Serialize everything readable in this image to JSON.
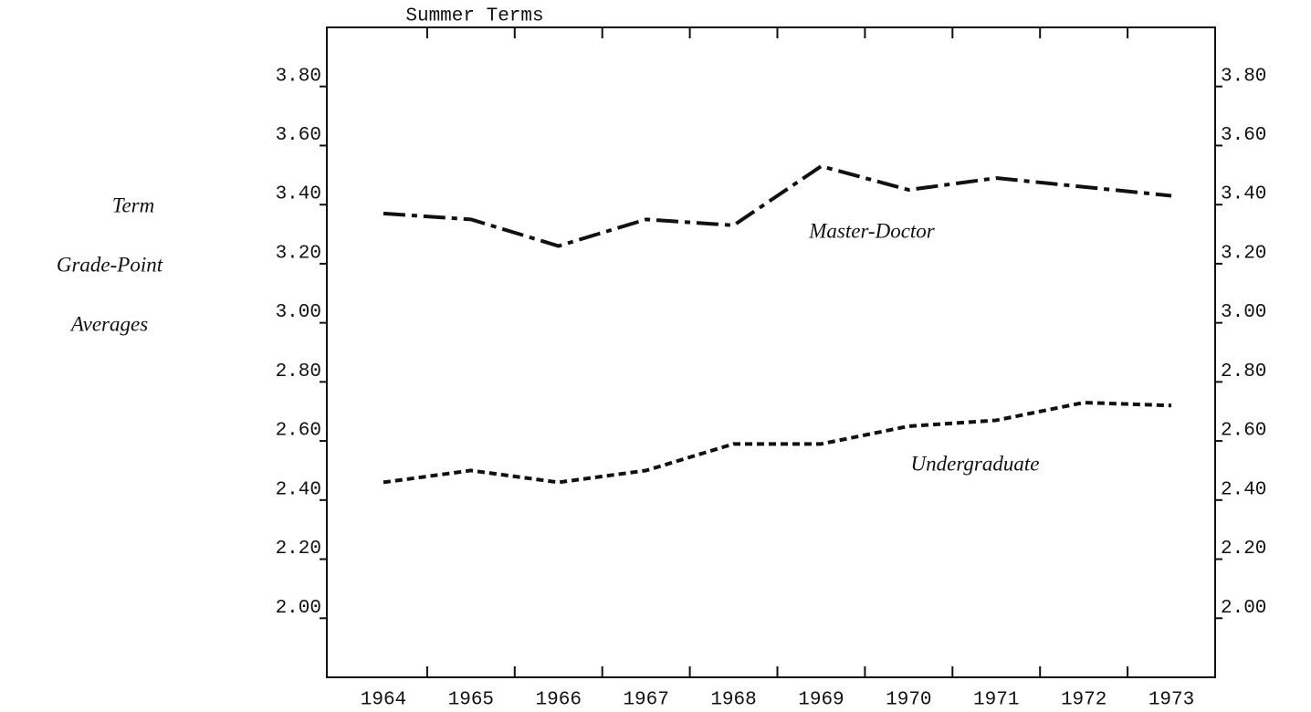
{
  "chart_data": {
    "type": "line",
    "title": "Summer Terms",
    "y_label": [
      "Term",
      "Grade-Point",
      "Averages"
    ],
    "categories": [
      "1964",
      "1965",
      "1966",
      "1967",
      "1968",
      "1969",
      "1970",
      "1971",
      "1972",
      "1973"
    ],
    "series": [
      {
        "name": "Master-Doctor",
        "color": "#111111",
        "values": [
          3.37,
          3.35,
          3.26,
          3.35,
          3.33,
          3.53,
          3.45,
          3.49,
          3.46,
          3.43
        ]
      },
      {
        "name": "Undergraduate",
        "color": "#111111",
        "values": [
          2.46,
          2.5,
          2.46,
          2.5,
          2.59,
          2.59,
          2.65,
          2.67,
          2.73,
          2.72
        ]
      }
    ],
    "ylim": [
      1.8,
      4.0
    ],
    "yticks": [
      {
        "value": 2.0,
        "label": "2.00"
      },
      {
        "value": 2.2,
        "label": "2.20"
      },
      {
        "value": 2.4,
        "label": "2.40"
      },
      {
        "value": 2.6,
        "label": "2.60"
      },
      {
        "value": 2.8,
        "label": "2.80"
      },
      {
        "value": 3.0,
        "label": "3.00"
      },
      {
        "value": 3.2,
        "label": "3.20"
      },
      {
        "value": 3.4,
        "label": "3.40"
      },
      {
        "value": 3.6,
        "label": "3.60"
      },
      {
        "value": 3.8,
        "label": "3.80"
      }
    ]
  }
}
